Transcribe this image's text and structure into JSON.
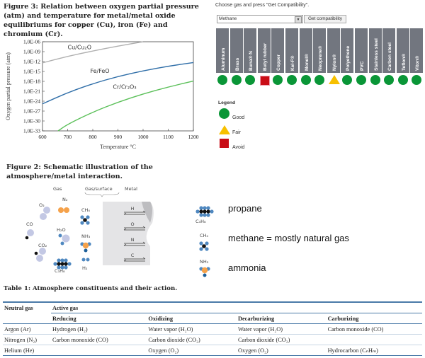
{
  "figure3": {
    "caption": "Figure 3: Relation between oxygen partial pressure (atm) and temperature for metal/metal oxide equilibriums for copper (Cu), iron (Fe) and chromium (Cr)."
  },
  "chart_data": {
    "type": "line",
    "xlabel": "Temperature °C",
    "ylabel": "Oxygen partial pressure (atm)",
    "xlim": [
      600,
      1200
    ],
    "ylim_log10": [
      -33,
      -6
    ],
    "y_scale": "log",
    "grid": false,
    "x_ticks": [
      "600",
      "700",
      "800",
      "900",
      "1000",
      "1100",
      "1200"
    ],
    "y_ticks": [
      "1,0E-06",
      "1,0E-09",
      "1,0E-12",
      "1,0E-15",
      "1,0E-18",
      "1,0E-21",
      "1,0E-24",
      "1,0E-27",
      "1,0E-30",
      "1,0E-33"
    ],
    "series": [
      {
        "name": "Cu/Cu2O",
        "color": "#b0b0b0",
        "x": [
          600,
          700,
          800,
          900,
          1000
        ],
        "y_exp": [
          -12.4,
          -10.4,
          -8.8,
          -7.3,
          -6.0
        ]
      },
      {
        "name": "Fe/FeO",
        "color": "#2f6ea8",
        "x": [
          600,
          700,
          800,
          900,
          1000,
          1100,
          1200
        ],
        "y_exp": [
          -24.8,
          -21.4,
          -18.7,
          -16.5,
          -14.8,
          -13.4,
          -12.3
        ]
      },
      {
        "name": "Cr/Cr2O3",
        "color": "#5cc05a",
        "x": [
          662,
          700,
          800,
          900,
          1000,
          1100,
          1200
        ],
        "y_exp": [
          -33,
          -31.0,
          -27.3,
          -24.3,
          -21.8,
          -19.7,
          -17.9
        ]
      }
    ],
    "series_labels": [
      "Cu/Cu₂O",
      "Fe/FeO",
      "Cr/Cr₂O₃"
    ]
  },
  "compat": {
    "instruction": "Choose gas and press \"Get Compatibility\".",
    "gas_selected": "Methane",
    "button": "Get compatibility",
    "materials": [
      {
        "name": "Aluminum",
        "rating": "good"
      },
      {
        "name": "Brass",
        "rating": "good"
      },
      {
        "name": "Buna® N",
        "rating": "good"
      },
      {
        "name": "Butyl rubber",
        "rating": "avoid"
      },
      {
        "name": "Copper",
        "rating": "good"
      },
      {
        "name": "Kel-F®",
        "rating": "good"
      },
      {
        "name": "Monel®",
        "rating": "good"
      },
      {
        "name": "Neoprene®",
        "rating": "good"
      },
      {
        "name": "Nylon®",
        "rating": "fair"
      },
      {
        "name": "Polyethene",
        "rating": "good"
      },
      {
        "name": "PVC",
        "rating": "good"
      },
      {
        "name": "Stainless steel",
        "rating": "good"
      },
      {
        "name": "Carbon steel",
        "rating": "good"
      },
      {
        "name": "Teflon®",
        "rating": "good"
      },
      {
        "name": "Viton®",
        "rating": "good"
      }
    ],
    "legend": {
      "title": "Legend",
      "good": "Good",
      "fair": "Fair",
      "avoid": "Avoid"
    },
    "colors": {
      "header": "#72767f",
      "good": "#0a9637",
      "fair": "#f7c000",
      "avoid": "#c90d16"
    }
  },
  "figure2": {
    "caption": "Figure 2: Schematic illustration of the atmosphere/metal interaction.",
    "headers": {
      "gas": "Gas",
      "surface": "Gas/surface",
      "metal": "Metal"
    },
    "molecules": {
      "o2": "O₂",
      "n2": "N₂",
      "co": "CO",
      "h2o": "H₂O",
      "co2": "CO₂",
      "c3h8": "C₃H₈",
      "ch4": "CH₄",
      "nh3": "NH₃",
      "h2": "H₂"
    },
    "arrows": [
      "H",
      "O",
      "N",
      "C"
    ],
    "notes": {
      "propane": "propane",
      "methane": "methane = mostly natural gas",
      "ammonia": "ammonia"
    }
  },
  "table1": {
    "caption": "Table 1:  Atmosphere constituents and their action.",
    "header": {
      "neutral": "Neutral gas",
      "active": "Active gas"
    },
    "subheaders": [
      "Reducing",
      "Oxidizing",
      "Decarburizing",
      "Carburizing"
    ],
    "rows": [
      [
        "Argon (Ar)",
        "Hydrogen (H₂)",
        "Water vapor (H₂O)",
        "Water vapor (H₂O)",
        "Carbon monoxide (CO)"
      ],
      [
        "Nitrogen (N₂)",
        "Carbon monoxide (CO)",
        "Carbon dioxide (CO₂)",
        "Carbon dioxide (CO₂)",
        ""
      ],
      [
        "Helium (He)",
        "",
        "Oxygen (O₂)",
        "Oxygen (O₂)",
        "Hydrocarbon (CₙHₘ)"
      ]
    ]
  }
}
